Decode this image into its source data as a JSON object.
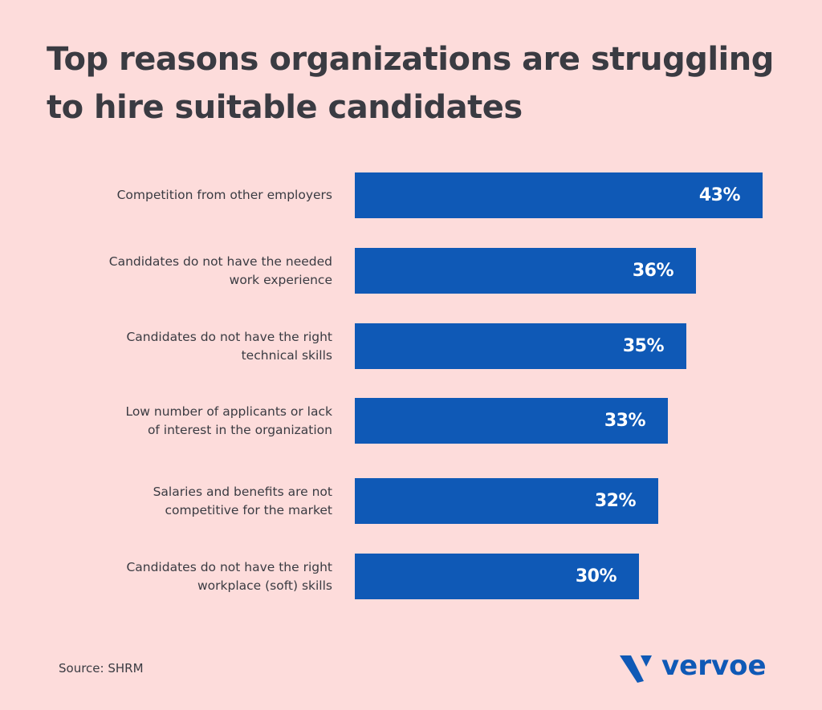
{
  "header": {
    "title": "Top reasons organizations are struggling to hire suitable candidates"
  },
  "colors": {
    "background": "#fddcdb",
    "bar": "#0f59b6",
    "text": "#3a3b42",
    "value_text": "#ffffff"
  },
  "bars": [
    {
      "label": "Competition from other employers",
      "value": 43,
      "display": "43%"
    },
    {
      "label": "Candidates do not have the needed\nwork experience",
      "value": 36,
      "display": "36%"
    },
    {
      "label": "Candidates do not have the right\ntechnical skills",
      "value": 35,
      "display": "35%"
    },
    {
      "label": "Low number of applicants or lack\nof interest in the organization",
      "value": 33,
      "display": "33%"
    },
    {
      "label": "Salaries and benefits are not\ncompetitive for the market",
      "value": 32,
      "display": "32%"
    },
    {
      "label": "Candidates do not have the right\nworkplace (soft) skills",
      "value": 30,
      "display": "30%"
    }
  ],
  "footer": {
    "source": "Source: SHRM",
    "logo_text": "vervoe"
  },
  "chart_data": {
    "type": "bar",
    "orientation": "horizontal",
    "title": "Top reasons organizations are struggling to hire suitable candidates",
    "categories": [
      "Competition from other employers",
      "Candidates do not have the needed work experience",
      "Candidates do not have the right technical skills",
      "Low number of applicants or lack of interest in the organization",
      "Salaries and benefits are not competitive for the market",
      "Candidates do not have the right workplace (soft) skills"
    ],
    "values": [
      43,
      36,
      35,
      33,
      32,
      30
    ],
    "value_labels": [
      "43%",
      "36%",
      "35%",
      "33%",
      "32%",
      "30%"
    ],
    "unit": "%",
    "xlabel": "",
    "ylabel": "",
    "grid": false,
    "legend": null,
    "source": "Source: SHRM"
  }
}
